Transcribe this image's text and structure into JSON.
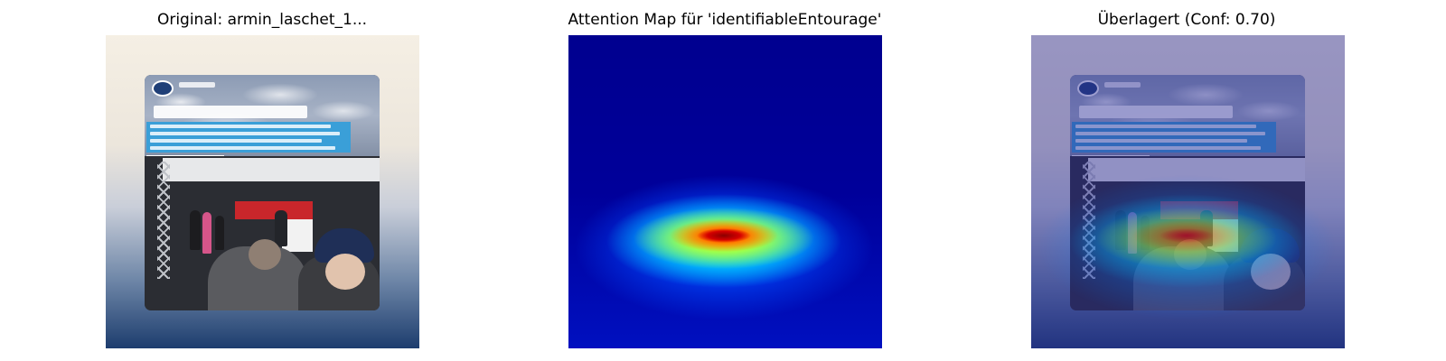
{
  "panels": [
    {
      "title": "Original: armin_laschet_1..."
    },
    {
      "title": "Attention Map für 'identifiableEntourage'"
    },
    {
      "title": "Überlagert (Conf: 0.70)"
    }
  ],
  "colors": {
    "heat_low": "#00008f",
    "heat_mid": "#00bfff",
    "heat_high": "#ff0000",
    "quote_box": "#3a9fd8",
    "cdu_banner": "#c9262b"
  }
}
